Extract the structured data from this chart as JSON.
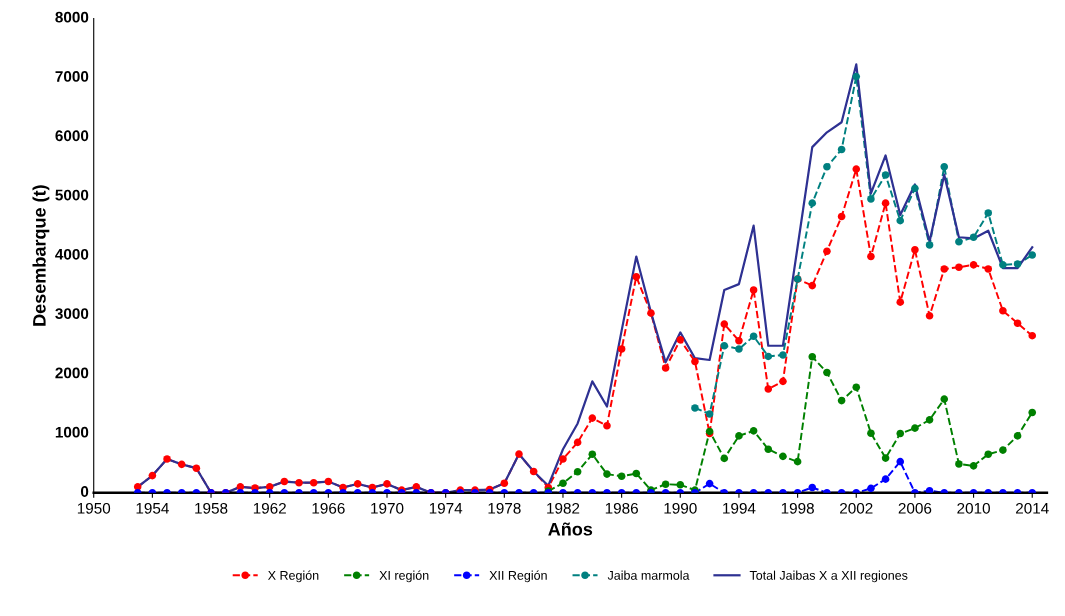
{
  "chart_data": {
    "type": "line",
    "xlabel": "Años",
    "ylabel": "Desembarque (t)",
    "x": [
      1953,
      1954,
      1955,
      1956,
      1957,
      1958,
      1959,
      1960,
      1961,
      1962,
      1963,
      1964,
      1965,
      1966,
      1967,
      1968,
      1969,
      1970,
      1971,
      1972,
      1973,
      1974,
      1975,
      1976,
      1977,
      1978,
      1979,
      1980,
      1981,
      1982,
      1983,
      1984,
      1985,
      1986,
      1987,
      1988,
      1989,
      1990,
      1991,
      1992,
      1993,
      1994,
      1995,
      1996,
      1997,
      1998,
      1999,
      2000,
      2001,
      2002,
      2003,
      2004,
      2005,
      2006,
      2007,
      2008,
      2009,
      2010,
      2011,
      2012,
      2013,
      2014
    ],
    "xlim": [
      1950,
      2015
    ],
    "xticks": [
      1950,
      1954,
      1958,
      1962,
      1966,
      1970,
      1974,
      1978,
      1982,
      1986,
      1990,
      1994,
      1998,
      2002,
      2006,
      2010,
      2014
    ],
    "ylim": [
      0,
      8000
    ],
    "yticks": [
      0,
      1000,
      2000,
      3000,
      4000,
      5000,
      6000,
      7000,
      8000
    ],
    "grid": false,
    "legend": "bottom",
    "series": [
      {
        "name": "X Región",
        "color": "#ff0000",
        "marker": "circle",
        "line_style": "dashed",
        "values": [
          100,
          290,
          570,
          480,
          415,
          0,
          0,
          100,
          80,
          100,
          190,
          170,
          170,
          190,
          90,
          150,
          90,
          150,
          45,
          100,
          0,
          0,
          45,
          45,
          55,
          160,
          653,
          360,
          90,
          570,
          850,
          1260,
          1130,
          2425,
          3645,
          3030,
          2105,
          2580,
          2215,
          1000,
          2845,
          2565,
          3420,
          1750,
          1880,
          3605,
          3495,
          4075,
          4660,
          5460,
          3985,
          4885,
          3215,
          4100,
          2985,
          3775,
          3805,
          3845,
          3775,
          3070,
          2860,
          2650
        ]
      },
      {
        "name": "XI región",
        "color": "#008000",
        "marker": "circle",
        "line_style": "dashed",
        "values": [
          null,
          null,
          null,
          null,
          null,
          null,
          null,
          null,
          null,
          null,
          null,
          null,
          null,
          null,
          null,
          null,
          null,
          null,
          null,
          null,
          null,
          null,
          null,
          null,
          null,
          null,
          null,
          null,
          30,
          160,
          355,
          650,
          315,
          280,
          325,
          45,
          145,
          135,
          45,
          1035,
          580,
          960,
          1045,
          735,
          615,
          525,
          2295,
          2030,
          1555,
          1780,
          1005,
          585,
          1000,
          1090,
          1230,
          1580,
          485,
          455,
          650,
          720,
          960,
          1355
        ]
      },
      {
        "name": "XII Región",
        "color": "#0000ff",
        "marker": "circle",
        "line_style": "dashed",
        "values": [
          0,
          0,
          0,
          0,
          0,
          0,
          0,
          0,
          0,
          0,
          0,
          0,
          0,
          0,
          0,
          0,
          0,
          0,
          0,
          0,
          0,
          0,
          0,
          0,
          0,
          0,
          0,
          0,
          0,
          0,
          0,
          0,
          0,
          0,
          0,
          0,
          0,
          0,
          0,
          155,
          0,
          0,
          0,
          0,
          0,
          0,
          90,
          0,
          0,
          0,
          75,
          230,
          525,
          0,
          35,
          0,
          0,
          0,
          0,
          0,
          0,
          0
        ]
      },
      {
        "name": "Jaiba marmola",
        "color": "#008080",
        "marker": "circle",
        "line_style": "dashed",
        "values": [
          null,
          null,
          null,
          null,
          null,
          null,
          null,
          null,
          null,
          null,
          null,
          null,
          null,
          null,
          null,
          null,
          null,
          null,
          null,
          null,
          null,
          null,
          null,
          null,
          null,
          null,
          null,
          null,
          null,
          null,
          null,
          null,
          null,
          null,
          null,
          null,
          null,
          null,
          1430,
          1330,
          2480,
          2425,
          2640,
          2300,
          2325,
          3605,
          4885,
          5500,
          5790,
          7020,
          4955,
          5360,
          4590,
          5135,
          4180,
          5500,
          4235,
          4310,
          4720,
          3845,
          3860,
          4010
        ]
      },
      {
        "name": "Total Jaibas X a XII regiones",
        "color": "#2e3192",
        "marker": "none",
        "line_style": "solid",
        "values": [
          100,
          290,
          570,
          480,
          415,
          0,
          0,
          100,
          80,
          100,
          190,
          170,
          170,
          190,
          90,
          150,
          90,
          150,
          45,
          100,
          0,
          0,
          45,
          45,
          55,
          160,
          653,
          360,
          120,
          735,
          1170,
          1880,
          1455,
          2735,
          3985,
          3045,
          2200,
          2705,
          2270,
          2240,
          3420,
          3520,
          4505,
          2480,
          2480,
          4150,
          5830,
          6080,
          6250,
          7225,
          5050,
          5690,
          4685,
          5200,
          4240,
          5365,
          4310,
          4290,
          4420,
          3790,
          3790,
          4140
        ]
      }
    ]
  }
}
